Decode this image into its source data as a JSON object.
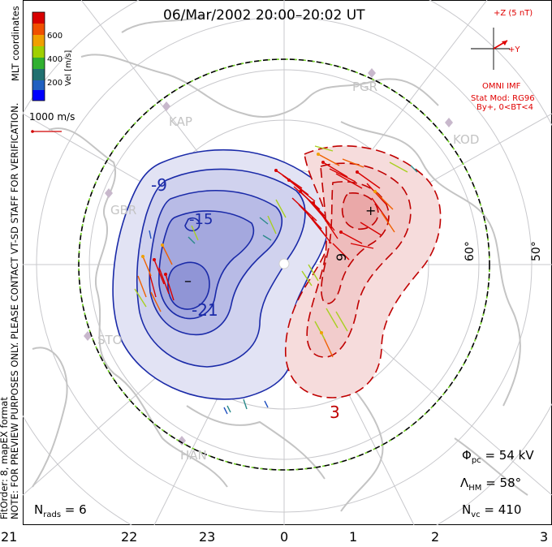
{
  "title": "06/Mar/2002 20:00–20:02 UT",
  "colorbar": {
    "label": "Vel [m/s]",
    "ticks": [
      "600",
      "400",
      "200"
    ],
    "colors": [
      "#d80000",
      "#f05000",
      "#f0a000",
      "#a0d000",
      "#30b030",
      "#207070",
      "#2060c0",
      "#0000ff"
    ]
  },
  "coords_label": "MLT coordinates",
  "vector_scale": "1000 m/s",
  "imf": {
    "plus_z": "+Z (5 nT)",
    "plus_y": "+Y",
    "source": "OMNI IMF",
    "model_line1": "Stat Mod: RG96",
    "model_line2": "By+, 0<BT<4"
  },
  "notes": {
    "preview": "NOTE: FOR PREVIEW PURPOSES ONLY. PLEASE CONTACT VT-SD STAFF FOR VERIFICATION.",
    "fit": "FitOrder: 8, mapEX format"
  },
  "stations": [
    "PGR",
    "KAP",
    "KOD",
    "GBR",
    "STO",
    "HAN"
  ],
  "lat_labels": [
    "60°",
    "50°"
  ],
  "contour_labels": [
    "-9",
    "-15",
    "-21",
    "3",
    "9"
  ],
  "extrema": {
    "min": "–",
    "max": "+"
  },
  "stats": {
    "phi_sym": "Φ",
    "phi_sub": "pc",
    "phi_val": " = 54 kV",
    "lam_sym": "Λ",
    "lam_sub": "HM",
    "lam_val": " = 58°",
    "nvc_sym": "N",
    "nvc_sub": "vc",
    "nvc_val": " = 410",
    "nrads_sym": "N",
    "nrads_sub": "rads",
    "nrads_val": " = 6"
  },
  "mlt_ticks": [
    "21",
    "22",
    "23",
    "0",
    "1",
    "2",
    "3"
  ],
  "colors": {
    "negative": "#1020a0",
    "positive": "#c00000",
    "accent": "#e00000"
  }
}
